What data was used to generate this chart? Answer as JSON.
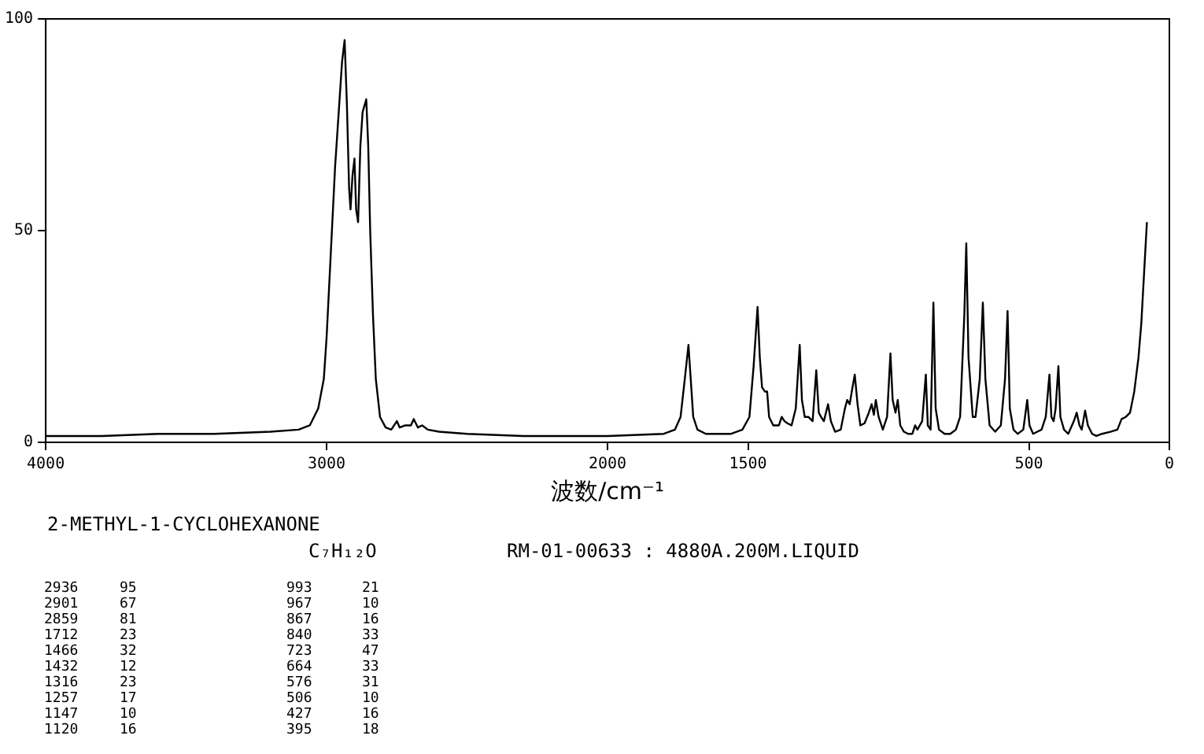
{
  "chart_data": {
    "type": "line",
    "xlabel": "波数/cm⁻¹",
    "xlim": [
      4000,
      0
    ],
    "xticks": [
      4000,
      3000,
      2000,
      1500,
      500,
      0
    ],
    "ylim": [
      0,
      100
    ],
    "yticks": [
      0,
      50,
      100
    ],
    "grid": false,
    "legend": false,
    "marker": "none",
    "line_style": "solid",
    "series": [
      {
        "color": "#000000",
        "x": [
          4000,
          3800,
          3600,
          3400,
          3200,
          3100,
          3060,
          3030,
          3010,
          3000,
          2985,
          2970,
          2955,
          2945,
          2936,
          2928,
          2920,
          2915,
          2908,
          2901,
          2895,
          2888,
          2880,
          2872,
          2859,
          2852,
          2845,
          2835,
          2825,
          2810,
          2790,
          2770,
          2750,
          2740,
          2720,
          2700,
          2690,
          2675,
          2660,
          2640,
          2600,
          2500,
          2300,
          2000,
          1800,
          1760,
          1740,
          1725,
          1712,
          1705,
          1695,
          1680,
          1650,
          1560,
          1520,
          1495,
          1480,
          1466,
          1458,
          1450,
          1440,
          1432,
          1425,
          1410,
          1390,
          1380,
          1370,
          1360,
          1345,
          1330,
          1316,
          1308,
          1298,
          1285,
          1270,
          1257,
          1248,
          1240,
          1230,
          1215,
          1205,
          1190,
          1170,
          1155,
          1147,
          1138,
          1128,
          1120,
          1110,
          1100,
          1085,
          1070,
          1060,
          1052,
          1045,
          1035,
          1020,
          1005,
          993,
          985,
          975,
          967,
          958,
          945,
          930,
          915,
          905,
          897,
          880,
          867,
          860,
          850,
          840,
          832,
          820,
          800,
          780,
          760,
          745,
          730,
          723,
          715,
          700,
          690,
          675,
          664,
          655,
          640,
          620,
          600,
          585,
          576,
          568,
          555,
          540,
          520,
          506,
          498,
          485,
          470,
          455,
          440,
          427,
          420,
          412,
          405,
          395,
          388,
          375,
          360,
          340,
          330,
          320,
          312,
          300,
          290,
          275,
          260,
          240,
          210,
          185,
          170,
          155,
          140,
          125,
          110,
          100,
          90,
          80
        ],
        "values": [
          1.5,
          1.5,
          2,
          2,
          2.5,
          3,
          4,
          8,
          15,
          25,
          45,
          65,
          80,
          90,
          95,
          80,
          60,
          55,
          63,
          67,
          55,
          52,
          70,
          78,
          81,
          70,
          50,
          30,
          15,
          6,
          3.5,
          3,
          5,
          3.5,
          4,
          4,
          5.5,
          3.5,
          4,
          3,
          2.5,
          2,
          1.5,
          1.5,
          2,
          3,
          6,
          15,
          23,
          16,
          6,
          3,
          2,
          2,
          3,
          6,
          18,
          32,
          20,
          13,
          12,
          12,
          6,
          4,
          4,
          6,
          5,
          4.5,
          4,
          8,
          23,
          10,
          6,
          6,
          5,
          17,
          7,
          6,
          5,
          9,
          5,
          2.5,
          3,
          8,
          10,
          9,
          13,
          16,
          9,
          4,
          4.5,
          7,
          9,
          6.5,
          10,
          6,
          3,
          6,
          21,
          10,
          7,
          10,
          4,
          2.5,
          2,
          2,
          4,
          3,
          5,
          16,
          4,
          3,
          33,
          8,
          3,
          2,
          2,
          3,
          6,
          30,
          47,
          20,
          6,
          6,
          15,
          33,
          15,
          4,
          2.5,
          4,
          15,
          31,
          8,
          3,
          2,
          3,
          10,
          4,
          2,
          2.5,
          3,
          6,
          16,
          6,
          5,
          8,
          18,
          6,
          3,
          2,
          5,
          7,
          4,
          3,
          7.5,
          4,
          2,
          1.5,
          2,
          2.5,
          3,
          5.5,
          6,
          7,
          12,
          20,
          28,
          40,
          52
        ]
      }
    ],
    "annotations": [
      "2-METHYL-1-CYCLOHEXANONE",
      "C₇H₁₂O",
      "RM-01-00633 : 4880A.200M.LIQUID",
      "2936",
      "95",
      "993",
      "21",
      "2901",
      "67",
      "967",
      "10",
      "2859",
      "81",
      "867",
      "16",
      "1712",
      "23",
      "840",
      "33",
      "1466",
      "32",
      "723",
      "47",
      "1432",
      "12",
      "664",
      "33",
      "1316",
      "23",
      "576",
      "31",
      "1257",
      "17",
      "506",
      "10",
      "1147",
      "10",
      "427",
      "16",
      "1120",
      "16",
      "395",
      "18"
    ]
  }
}
